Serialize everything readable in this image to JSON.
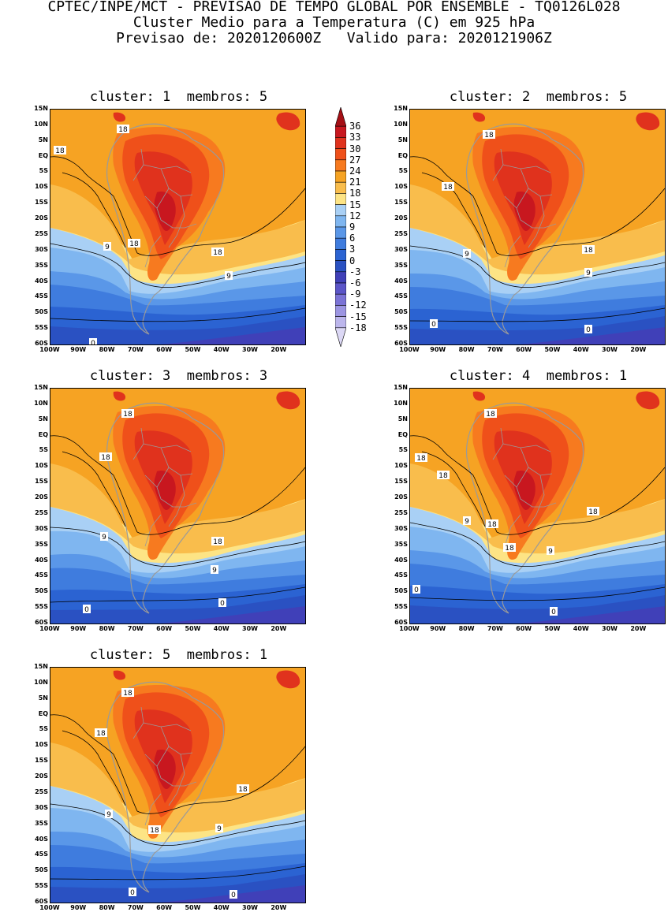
{
  "header": {
    "line1": "CPTEC/INPE/MCT - PREVISAO DE TEMPO GLOBAL POR ENSEMBLE - TQ0126L028",
    "line2": "Cluster Medio para a Temperatura (C) em 925 hPa",
    "line3": "Previsao de: 2020120600Z   Valido para: 2020121906Z"
  },
  "lat_labels": [
    "15N",
    "10N",
    "5N",
    "EQ",
    "5S",
    "10S",
    "15S",
    "20S",
    "25S",
    "30S",
    "35S",
    "40S",
    "45S",
    "50S",
    "55S",
    "60S"
  ],
  "lon_labels": [
    "100W",
    "90W",
    "80W",
    "70W",
    "60W",
    "50W",
    "40W",
    "30W",
    "20W"
  ],
  "panels": [
    {
      "title": "cluster: 1  membros: 5",
      "contour_labels": [
        "18",
        "18",
        "18",
        "18",
        "9",
        "9",
        "0"
      ]
    },
    {
      "title": "cluster: 2  membros: 5",
      "contour_labels": [
        "18",
        "18",
        "18",
        "9",
        "9",
        "0",
        "0"
      ]
    },
    {
      "title": "cluster: 3  membros: 3",
      "contour_labels": [
        "18",
        "18",
        "18",
        "9",
        "9",
        "0",
        "0"
      ]
    },
    {
      "title": "cluster: 4  membros: 1",
      "contour_labels": [
        "18",
        "18",
        "18",
        "18",
        "18",
        "18",
        "9",
        "9",
        "0",
        "0"
      ]
    },
    {
      "title": "cluster: 5  membros: 1",
      "contour_labels": [
        "18",
        "18",
        "18",
        "18",
        "9",
        "9",
        "0",
        "0"
      ]
    }
  ],
  "colorbar": {
    "levels": [
      "36",
      "33",
      "30",
      "27",
      "24",
      "21",
      "18",
      "15",
      "12",
      "9",
      "6",
      "3",
      "0",
      "-3",
      "-6",
      "-9",
      "-12",
      "-15",
      "-18"
    ],
    "colors": [
      "#a50f15",
      "#c8171f",
      "#e0321d",
      "#ef501a",
      "#f6a323",
      "#f6a323",
      "#f9bd4c",
      "#fde485",
      "#7fb6f0",
      "#5a97e8",
      "#3f7cde",
      "#2b63d2",
      "#2a51c2",
      "#4040b8",
      "#5b55c8",
      "#7b73d6",
      "#9c95e2",
      "#bcb6ec",
      "#dcd8f5"
    ],
    "band_colors": [
      "#a50f15",
      "#c8171f",
      "#e0321d",
      "#ef501a",
      "#f77a1f",
      "#f6a323",
      "#f9bd4c",
      "#fde485",
      "#a9d0f5",
      "#7fb6f0",
      "#5a97e8",
      "#3f7cde",
      "#2b63d2",
      "#2a51c2",
      "#4040b8",
      "#5b55c8",
      "#7b73d6",
      "#9c95e2",
      "#bcb6ec",
      "#dcd8f5"
    ]
  }
}
